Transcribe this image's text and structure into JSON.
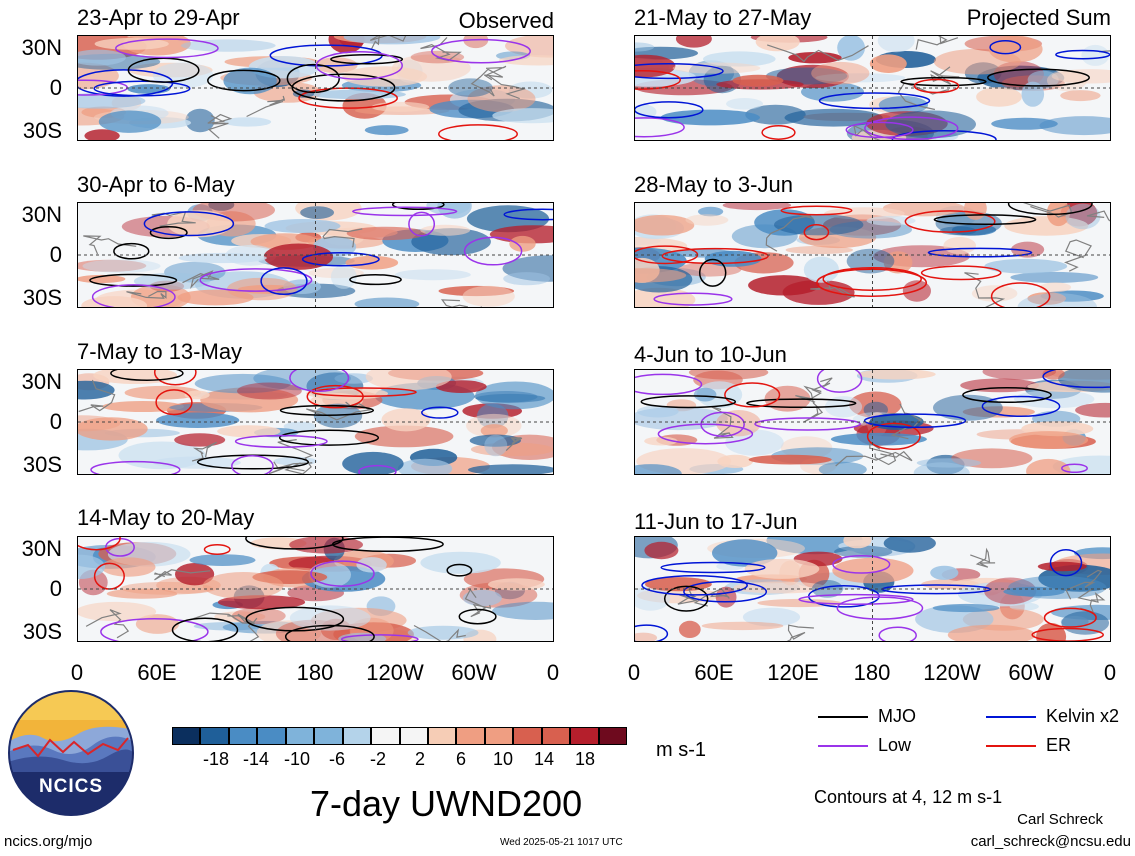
{
  "panels_left": [
    {
      "title": "23-Apr to 29-Apr",
      "corner": "Observed"
    },
    {
      "title": "30-Apr to 6-May",
      "corner": ""
    },
    {
      "title": "7-May to 13-May",
      "corner": ""
    },
    {
      "title": "14-May to 20-May",
      "corner": ""
    }
  ],
  "panels_right": [
    {
      "title": "21-May to 27-May",
      "corner": "Projected Sum"
    },
    {
      "title": "28-May to 3-Jun",
      "corner": ""
    },
    {
      "title": "4-Jun to 10-Jun",
      "corner": ""
    },
    {
      "title": "11-Jun to 17-Jun",
      "corner": ""
    }
  ],
  "lat_labels": [
    "30N",
    "0",
    "30S"
  ],
  "lon_labels": [
    "0",
    "60E",
    "120E",
    "180",
    "120W",
    "60W",
    "0"
  ],
  "colorbar": {
    "labels": [
      "-18",
      "-14",
      "-10",
      "-6",
      "-2",
      "2",
      "6",
      "10",
      "14",
      "18"
    ],
    "unit": "m s-1",
    "colors": [
      "#0b2f5e",
      "#1f5f99",
      "#4a8cc4",
      "#7fb3da",
      "#b4d3ea",
      "#f5f5f5",
      "#f6cdb6",
      "#ef9e82",
      "#d8604f",
      "#b51f2c",
      "#6e0a1e"
    ]
  },
  "legend": [
    {
      "label": "MJO",
      "color": "#000000"
    },
    {
      "label": "Kelvin x2",
      "color": "#0015d6"
    },
    {
      "label": "Low",
      "color": "#9a34ea"
    },
    {
      "label": "ER",
      "color": "#e3140f"
    }
  ],
  "main_title": "7-day UWND200",
  "contour_note": "Contours at 4, 12 m s-1",
  "author": "Carl Schreck",
  "email": "carl_schreck@ncsu.edu",
  "site": "ncics.org/mjo",
  "timestamp": "Wed 2025-05-21 1017 UTC",
  "logo_text": "NCICS"
}
